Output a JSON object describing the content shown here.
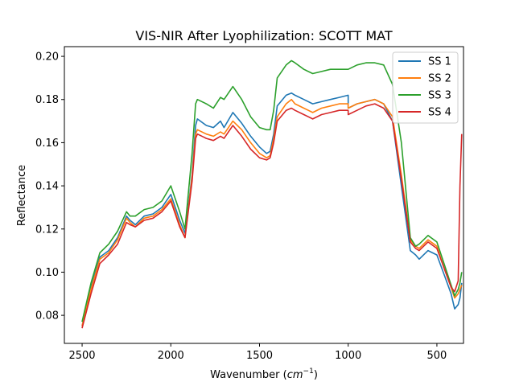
{
  "chart_data": {
    "type": "line",
    "title": "VIS-NIR After Lyophilization: SCOTT MAT",
    "xlabel_main": "Wavenumber (",
    "xlabel_unit_base": "cm",
    "xlabel_unit_exp": "−1",
    "xlabel_close": ")",
    "ylabel": "Reflectance",
    "xlim": [
      2600,
      350
    ],
    "ylim": [
      0.067,
      0.2045
    ],
    "x_ticks": [
      2500,
      2000,
      1500,
      1000,
      500
    ],
    "x_tick_labels": [
      "2500",
      "2000",
      "1500",
      "1000",
      "500"
    ],
    "y_ticks": [
      0.08,
      0.1,
      0.12,
      0.14,
      0.16,
      0.18,
      0.2
    ],
    "y_tick_labels": [
      "0.08",
      "0.10",
      "0.12",
      "0.14",
      "0.16",
      "0.18",
      "0.20"
    ],
    "grid": false,
    "legend_position": "top-right",
    "x": [
      2500,
      2450,
      2400,
      2350,
      2300,
      2250,
      2230,
      2200,
      2150,
      2100,
      2050,
      2000,
      1950,
      1920,
      1880,
      1860,
      1850,
      1800,
      1760,
      1720,
      1700,
      1650,
      1600,
      1550,
      1500,
      1460,
      1440,
      1420,
      1400,
      1350,
      1320,
      1300,
      1250,
      1200,
      1150,
      1100,
      1050,
      1000,
      1000,
      950,
      900,
      850,
      800,
      750,
      700,
      650,
      620,
      600,
      550,
      500,
      460,
      420,
      400,
      380,
      370,
      360
    ],
    "series": [
      {
        "name": "SS 1",
        "color": "#1f77b4",
        "values": [
          0.075,
          0.093,
          0.107,
          0.11,
          0.116,
          0.126,
          0.124,
          0.122,
          0.126,
          0.127,
          0.13,
          0.136,
          0.124,
          0.118,
          0.145,
          0.168,
          0.171,
          0.168,
          0.167,
          0.17,
          0.167,
          0.174,
          0.169,
          0.163,
          0.158,
          0.155,
          0.156,
          0.164,
          0.177,
          0.182,
          0.183,
          0.182,
          0.18,
          0.178,
          0.179,
          0.18,
          0.181,
          0.182,
          0.176,
          0.178,
          0.179,
          0.18,
          0.178,
          0.17,
          0.14,
          0.11,
          0.108,
          0.106,
          0.11,
          0.108,
          0.099,
          0.09,
          0.083,
          0.085,
          0.088,
          0.095
        ]
      },
      {
        "name": "SS 2",
        "color": "#ff7f0e",
        "values": [
          0.075,
          0.092,
          0.106,
          0.109,
          0.115,
          0.125,
          0.123,
          0.121,
          0.125,
          0.126,
          0.129,
          0.134,
          0.122,
          0.116,
          0.144,
          0.164,
          0.166,
          0.164,
          0.163,
          0.165,
          0.164,
          0.17,
          0.166,
          0.16,
          0.155,
          0.153,
          0.154,
          0.162,
          0.172,
          0.178,
          0.18,
          0.178,
          0.176,
          0.174,
          0.176,
          0.177,
          0.178,
          0.178,
          0.176,
          0.178,
          0.179,
          0.18,
          0.178,
          0.172,
          0.145,
          0.115,
          0.112,
          0.111,
          0.115,
          0.112,
          0.102,
          0.093,
          0.088,
          0.09,
          0.092,
          0.094
        ]
      },
      {
        "name": "SS 3",
        "color": "#2ca02c",
        "values": [
          0.077,
          0.095,
          0.109,
          0.113,
          0.119,
          0.128,
          0.126,
          0.126,
          0.129,
          0.13,
          0.133,
          0.14,
          0.128,
          0.12,
          0.155,
          0.178,
          0.18,
          0.178,
          0.176,
          0.181,
          0.18,
          0.186,
          0.18,
          0.172,
          0.167,
          0.166,
          0.166,
          0.175,
          0.19,
          0.196,
          0.198,
          0.197,
          0.194,
          0.192,
          0.193,
          0.194,
          0.194,
          0.194,
          0.194,
          0.196,
          0.197,
          0.197,
          0.196,
          0.187,
          0.16,
          0.116,
          0.112,
          0.113,
          0.117,
          0.114,
          0.104,
          0.094,
          0.089,
          0.092,
          0.095,
          0.1
        ]
      },
      {
        "name": "SS 4",
        "color": "#d62728",
        "values": [
          0.074,
          0.09,
          0.104,
          0.108,
          0.113,
          0.123,
          0.122,
          0.121,
          0.124,
          0.125,
          0.128,
          0.133,
          0.121,
          0.116,
          0.142,
          0.162,
          0.164,
          0.162,
          0.161,
          0.163,
          0.162,
          0.168,
          0.163,
          0.157,
          0.153,
          0.152,
          0.153,
          0.16,
          0.17,
          0.175,
          0.176,
          0.175,
          0.173,
          0.171,
          0.173,
          0.174,
          0.175,
          0.175,
          0.173,
          0.175,
          0.177,
          0.178,
          0.176,
          0.17,
          0.143,
          0.114,
          0.111,
          0.11,
          0.114,
          0.111,
          0.102,
          0.093,
          0.091,
          0.096,
          0.14,
          0.164
        ]
      }
    ]
  }
}
